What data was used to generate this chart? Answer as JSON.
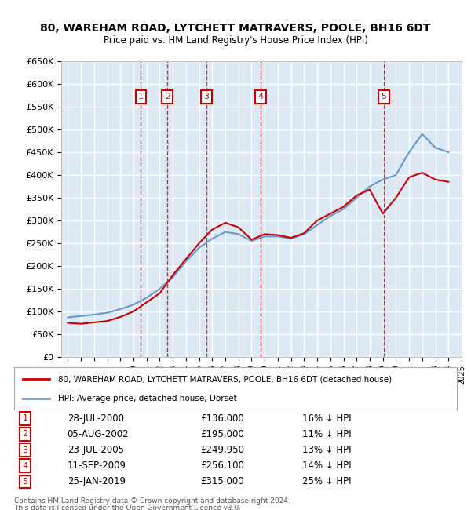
{
  "title": "80, WAREHAM ROAD, LYTCHETT MATRAVERS, POOLE, BH16 6DT",
  "subtitle": "Price paid vs. HM Land Registry's House Price Index (HPI)",
  "legend_line1": "80, WAREHAM ROAD, LYTCHETT MATRAVERS, POOLE, BH16 6DT (detached house)",
  "legend_line2": "HPI: Average price, detached house, Dorset",
  "footer_line1": "Contains HM Land Registry data © Crown copyright and database right 2024.",
  "footer_line2": "This data is licensed under the Open Government Licence v3.0.",
  "ylim": [
    0,
    650000
  ],
  "yticks": [
    0,
    50000,
    100000,
    150000,
    200000,
    250000,
    300000,
    350000,
    400000,
    450000,
    500000,
    550000,
    600000,
    650000
  ],
  "background_color": "#dce9f5",
  "plot_bg": "#dce9f5",
  "grid_color": "#ffffff",
  "red_line_color": "#cc0000",
  "blue_line_color": "#6699cc",
  "transaction_color": "#cc0000",
  "sales": [
    {
      "label": "1",
      "date": "28-JUL-2000",
      "price": 136000,
      "pct": "16%",
      "x_year": 2000.57
    },
    {
      "label": "2",
      "date": "05-AUG-2002",
      "price": 195000,
      "pct": "11%",
      "x_year": 2002.59
    },
    {
      "label": "3",
      "date": "23-JUL-2005",
      "price": 249950,
      "pct": "13%",
      "x_year": 2005.56
    },
    {
      "label": "4",
      "date": "11-SEP-2009",
      "price": 256100,
      "pct": "14%",
      "x_year": 2009.7
    },
    {
      "label": "5",
      "date": "25-JAN-2019",
      "price": 315000,
      "pct": "25%",
      "x_year": 2019.07
    }
  ],
  "hpi_years": [
    1995,
    1996,
    1997,
    1998,
    1999,
    2000,
    2001,
    2002,
    2003,
    2004,
    2005,
    2006,
    2007,
    2008,
    2009,
    2010,
    2011,
    2012,
    2013,
    2014,
    2015,
    2016,
    2017,
    2018,
    2019,
    2020,
    2021,
    2022,
    2023,
    2024
  ],
  "hpi_values": [
    87000,
    90000,
    93000,
    97000,
    105000,
    115000,
    130000,
    150000,
    175000,
    210000,
    240000,
    260000,
    275000,
    270000,
    255000,
    265000,
    265000,
    260000,
    270000,
    290000,
    310000,
    325000,
    350000,
    375000,
    390000,
    400000,
    450000,
    490000,
    460000,
    450000
  ],
  "sold_years": [
    1995,
    1996,
    1997,
    1998,
    1999,
    2000,
    2001,
    2002,
    2003,
    2004,
    2005,
    2006,
    2007,
    2008,
    2009,
    2010,
    2011,
    2012,
    2013,
    2014,
    2015,
    2016,
    2017,
    2018,
    2019,
    2020,
    2021,
    2022,
    2023,
    2024
  ],
  "sold_values": [
    75000,
    73000,
    76000,
    79000,
    88000,
    100000,
    120000,
    140000,
    180000,
    215000,
    250000,
    280000,
    295000,
    285000,
    258000,
    270000,
    268000,
    262000,
    272000,
    300000,
    315000,
    330000,
    355000,
    368000,
    315000,
    350000,
    395000,
    405000,
    390000,
    385000
  ],
  "xmin": 1994.5,
  "xmax": 2025.0
}
